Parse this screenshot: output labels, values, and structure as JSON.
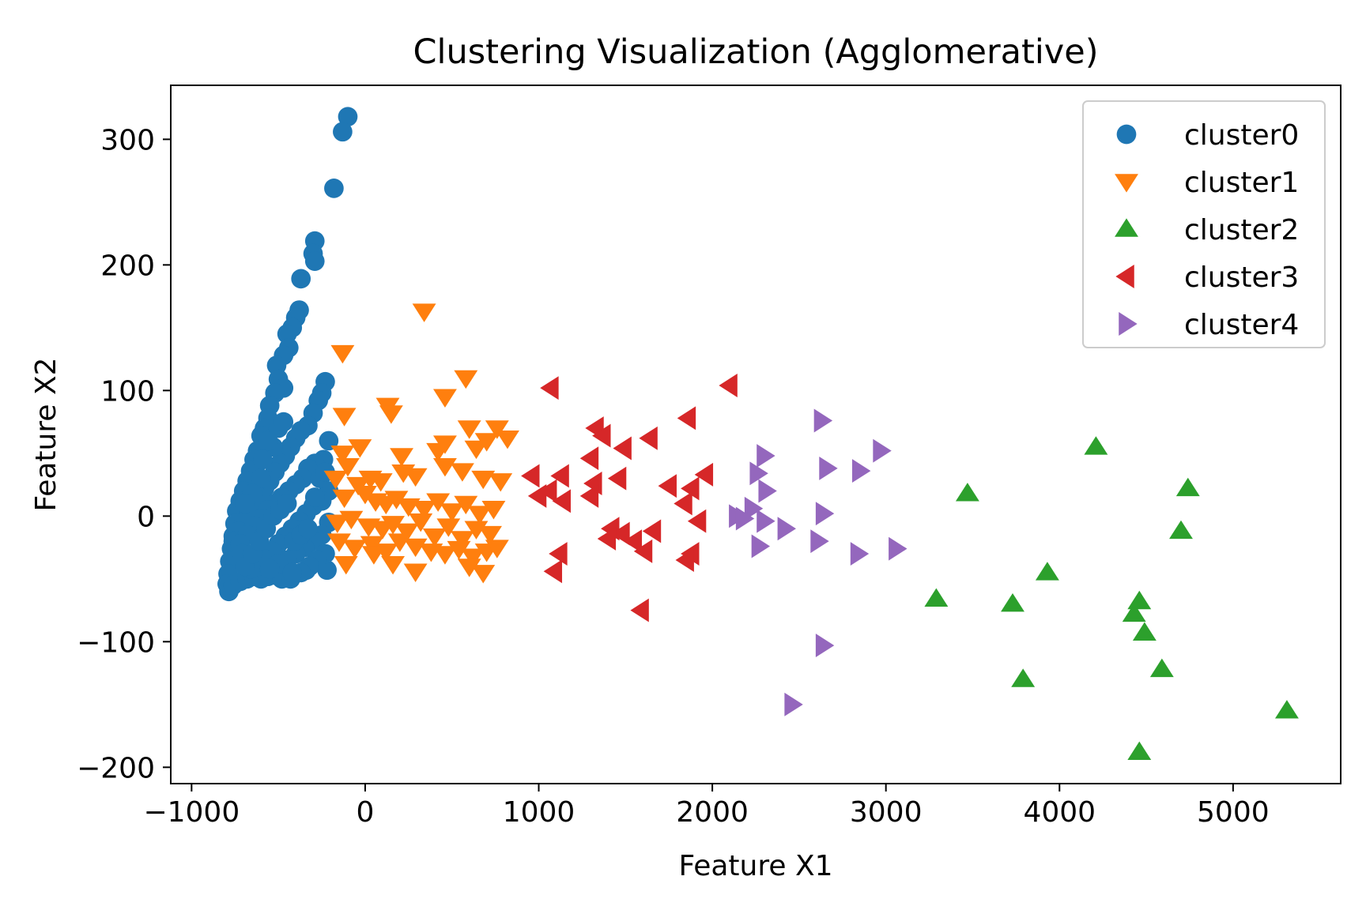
{
  "chart_data": {
    "type": "scatter",
    "title": "Clustering Visualization (Agglomerative)",
    "xlabel": "Feature X1",
    "ylabel": "Feature X2",
    "xlim": [
      -1120,
      5620
    ],
    "ylim": [
      -213,
      343
    ],
    "xticks": [
      -1000,
      0,
      1000,
      2000,
      3000,
      4000,
      5000
    ],
    "xtick_labels": [
      "−1000",
      "0",
      "1000",
      "2000",
      "3000",
      "4000",
      "5000"
    ],
    "yticks": [
      -200,
      -100,
      0,
      100,
      200,
      300
    ],
    "ytick_labels": [
      "−200",
      "−100",
      "0",
      "100",
      "200",
      "300"
    ],
    "grid": false,
    "legend_position": "top-right",
    "series": [
      {
        "name": "cluster0",
        "marker": "circle",
        "color": "#1f77b4",
        "points": [
          [
            -100,
            318
          ],
          [
            -130,
            306
          ],
          [
            -180,
            261
          ],
          [
            -290,
            219
          ],
          [
            -300,
            209
          ],
          [
            -290,
            203
          ],
          [
            -370,
            189
          ],
          [
            -380,
            164
          ],
          [
            -400,
            158
          ],
          [
            -420,
            150
          ],
          [
            -450,
            145
          ],
          [
            -440,
            134
          ],
          [
            -470,
            128
          ],
          [
            -510,
            120
          ],
          [
            -500,
            109
          ],
          [
            -470,
            102
          ],
          [
            -520,
            98
          ],
          [
            -550,
            88
          ],
          [
            -560,
            78
          ],
          [
            -580,
            70
          ],
          [
            -600,
            64
          ],
          [
            -620,
            52
          ],
          [
            -640,
            45
          ],
          [
            -660,
            36
          ],
          [
            -680,
            28
          ],
          [
            -700,
            20
          ],
          [
            -720,
            12
          ],
          [
            -740,
            4
          ],
          [
            -750,
            -6
          ],
          [
            -760,
            -16
          ],
          [
            -770,
            -26
          ],
          [
            -780,
            -36
          ],
          [
            -790,
            -46
          ],
          [
            -795,
            -54
          ],
          [
            -785,
            -60
          ],
          [
            -760,
            -55
          ],
          [
            -720,
            -52
          ],
          [
            -680,
            -50
          ],
          [
            -640,
            -48
          ],
          [
            -600,
            -50
          ],
          [
            -560,
            -48
          ],
          [
            -520,
            -47
          ],
          [
            -480,
            -50
          ],
          [
            -430,
            -50
          ],
          [
            -340,
            -43
          ],
          [
            -220,
            -43
          ],
          [
            -230,
            107
          ],
          [
            -250,
            98
          ],
          [
            -270,
            92
          ],
          [
            -300,
            82
          ],
          [
            -330,
            72
          ],
          [
            -370,
            68
          ],
          [
            -400,
            62
          ],
          [
            -430,
            55
          ],
          [
            -460,
            48
          ],
          [
            -490,
            42
          ],
          [
            -520,
            35
          ],
          [
            -550,
            28
          ],
          [
            -580,
            22
          ],
          [
            -610,
            15
          ],
          [
            -640,
            8
          ],
          [
            -670,
            2
          ],
          [
            -700,
            -5
          ],
          [
            -730,
            -12
          ],
          [
            -760,
            -20
          ],
          [
            -210,
            60
          ],
          [
            -240,
            45
          ],
          [
            -290,
            42
          ],
          [
            -330,
            38
          ],
          [
            -360,
            30
          ],
          [
            -400,
            25
          ],
          [
            -440,
            20
          ],
          [
            -480,
            15
          ],
          [
            -520,
            10
          ],
          [
            -560,
            5
          ],
          [
            -600,
            -2
          ],
          [
            -640,
            -8
          ],
          [
            -680,
            -15
          ],
          [
            -720,
            -22
          ],
          [
            -210,
            20
          ],
          [
            -250,
            12
          ],
          [
            -300,
            8
          ],
          [
            -340,
            2
          ],
          [
            -380,
            -4
          ],
          [
            -420,
            -10
          ],
          [
            -460,
            -16
          ],
          [
            -500,
            -22
          ],
          [
            -540,
            -28
          ],
          [
            -580,
            -34
          ],
          [
            -620,
            -40
          ],
          [
            -660,
            -42
          ],
          [
            -210,
            -5
          ],
          [
            -250,
            -15
          ],
          [
            -300,
            -20
          ],
          [
            -350,
            -25
          ],
          [
            -400,
            -30
          ],
          [
            -450,
            -35
          ],
          [
            -500,
            -38
          ],
          [
            -550,
            -42
          ],
          [
            -230,
            -30
          ],
          [
            -280,
            -35
          ],
          [
            -320,
            -40
          ],
          [
            -370,
            -45
          ],
          [
            -420,
            -45
          ],
          [
            -600,
            30
          ],
          [
            -650,
            18
          ],
          [
            -690,
            10
          ],
          [
            -710,
            -30
          ],
          [
            -690,
            -40
          ],
          [
            -650,
            -30
          ],
          [
            -610,
            -20
          ],
          [
            -570,
            -10
          ],
          [
            -530,
            0
          ],
          [
            -490,
            5
          ],
          [
            -450,
            10
          ],
          [
            -410,
            -20
          ],
          [
            -370,
            -15
          ],
          [
            -330,
            -10
          ],
          [
            -290,
            15
          ],
          [
            -260,
            30
          ],
          [
            -230,
            35
          ],
          [
            -530,
            55
          ],
          [
            -560,
            60
          ],
          [
            -590,
            45
          ],
          [
            -500,
            70
          ],
          [
            -470,
            75
          ]
        ]
      },
      {
        "name": "cluster1",
        "marker": "triangle-down",
        "color": "#ff7f0e",
        "points": [
          [
            340,
            163
          ],
          [
            -130,
            130
          ],
          [
            580,
            110
          ],
          [
            460,
            95
          ],
          [
            130,
            88
          ],
          [
            -120,
            80
          ],
          [
            150,
            82
          ],
          [
            600,
            70
          ],
          [
            760,
            70
          ],
          [
            820,
            62
          ],
          [
            700,
            60
          ],
          [
            460,
            58
          ],
          [
            -30,
            55
          ],
          [
            -130,
            50
          ],
          [
            210,
            48
          ],
          [
            420,
            52
          ],
          [
            640,
            54
          ],
          [
            -100,
            40
          ],
          [
            -170,
            30
          ],
          [
            -40,
            25
          ],
          [
            30,
            30
          ],
          [
            90,
            28
          ],
          [
            220,
            35
          ],
          [
            290,
            32
          ],
          [
            460,
            40
          ],
          [
            560,
            36
          ],
          [
            680,
            30
          ],
          [
            780,
            28
          ],
          [
            -120,
            15
          ],
          [
            0,
            18
          ],
          [
            60,
            12
          ],
          [
            120,
            10
          ],
          [
            180,
            14
          ],
          [
            250,
            8
          ],
          [
            340,
            6
          ],
          [
            420,
            12
          ],
          [
            500,
            4
          ],
          [
            580,
            10
          ],
          [
            660,
            2
          ],
          [
            740,
            6
          ],
          [
            -160,
            -5
          ],
          [
            -80,
            -2
          ],
          [
            20,
            -8
          ],
          [
            100,
            -10
          ],
          [
            160,
            -6
          ],
          [
            240,
            -12
          ],
          [
            320,
            -4
          ],
          [
            400,
            -16
          ],
          [
            480,
            -8
          ],
          [
            560,
            -18
          ],
          [
            640,
            -10
          ],
          [
            720,
            -14
          ],
          [
            -150,
            -20
          ],
          [
            -60,
            -25
          ],
          [
            40,
            -22
          ],
          [
            120,
            -28
          ],
          [
            200,
            -20
          ],
          [
            290,
            -24
          ],
          [
            380,
            -28
          ],
          [
            460,
            -30
          ],
          [
            540,
            -26
          ],
          [
            620,
            -32
          ],
          [
            700,
            -28
          ],
          [
            -110,
            -38
          ],
          [
            50,
            -30
          ],
          [
            160,
            -38
          ],
          [
            290,
            -44
          ],
          [
            600,
            -40
          ],
          [
            680,
            -45
          ],
          [
            760,
            -25
          ]
        ]
      },
      {
        "name": "cluster2",
        "marker": "triangle-up",
        "color": "#2ca02c",
        "points": [
          [
            4210,
            55
          ],
          [
            3470,
            18
          ],
          [
            4740,
            22
          ],
          [
            4700,
            -12
          ],
          [
            3930,
            -45
          ],
          [
            3290,
            -66
          ],
          [
            3730,
            -70
          ],
          [
            4460,
            -68
          ],
          [
            4430,
            -78
          ],
          [
            4490,
            -93
          ],
          [
            3790,
            -130
          ],
          [
            4590,
            -122
          ],
          [
            5310,
            -155
          ],
          [
            4460,
            -188
          ]
        ]
      },
      {
        "name": "cluster3",
        "marker": "triangle-left",
        "color": "#d62728",
        "points": [
          [
            1070,
            102
          ],
          [
            2100,
            104
          ],
          [
            1860,
            78
          ],
          [
            1330,
            70
          ],
          [
            1370,
            64
          ],
          [
            1640,
            62
          ],
          [
            1490,
            54
          ],
          [
            1300,
            46
          ],
          [
            1960,
            33
          ],
          [
            960,
            32
          ],
          [
            1130,
            32
          ],
          [
            1460,
            30
          ],
          [
            1320,
            26
          ],
          [
            1880,
            22
          ],
          [
            1750,
            24
          ],
          [
            1000,
            16
          ],
          [
            1060,
            20
          ],
          [
            1140,
            12
          ],
          [
            1300,
            16
          ],
          [
            1840,
            10
          ],
          [
            1920,
            -4
          ],
          [
            1420,
            -10
          ],
          [
            1480,
            -14
          ],
          [
            1660,
            -12
          ],
          [
            1550,
            -20
          ],
          [
            1400,
            -18
          ],
          [
            1120,
            -30
          ],
          [
            1610,
            -28
          ],
          [
            1880,
            -30
          ],
          [
            1850,
            -35
          ],
          [
            1090,
            -44
          ],
          [
            1590,
            -75
          ]
        ]
      },
      {
        "name": "cluster4",
        "marker": "triangle-right",
        "color": "#9467bd",
        "points": [
          [
            2630,
            76
          ],
          [
            2970,
            52
          ],
          [
            2300,
            48
          ],
          [
            2660,
            38
          ],
          [
            2850,
            36
          ],
          [
            2260,
            34
          ],
          [
            2310,
            20
          ],
          [
            2230,
            6
          ],
          [
            2140,
            0
          ],
          [
            2180,
            -2
          ],
          [
            2300,
            -4
          ],
          [
            2640,
            2
          ],
          [
            2420,
            -10
          ],
          [
            2610,
            -20
          ],
          [
            2270,
            -24
          ],
          [
            2840,
            -30
          ],
          [
            3060,
            -26
          ],
          [
            2640,
            -103
          ],
          [
            2460,
            -150
          ]
        ]
      }
    ]
  }
}
